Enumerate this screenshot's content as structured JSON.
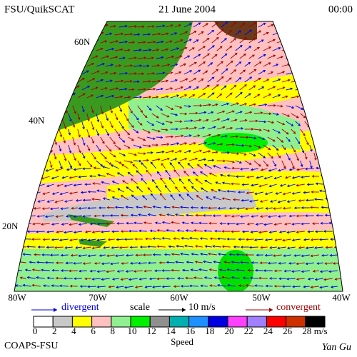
{
  "header": {
    "left": "FSU/QuikSCAT",
    "center": "21 June 2004",
    "right": "00:00"
  },
  "map": {
    "lat_labels": [
      "60N",
      "40N",
      "20N"
    ],
    "lon_labels": [
      "80W",
      "70W",
      "60W",
      "50W",
      "40W"
    ]
  },
  "legend": {
    "divergent": "divergent",
    "scale": "scale",
    "scale_value": "10 m/s",
    "convergent": "convergent"
  },
  "colorbar": {
    "label": "Speed",
    "unit": "m/s",
    "ticks": [
      0,
      2,
      4,
      6,
      8,
      10,
      12,
      14,
      16,
      18,
      20,
      22,
      24,
      26,
      28
    ],
    "colors": [
      "#ffffff",
      "#c8c8c8",
      "#ffff00",
      "#ffc0c0",
      "#90f090",
      "#00f000",
      "#909090",
      "#00b0b0",
      "#1e90ff",
      "#0000e0",
      "#ff40ff",
      "#a080ff",
      "#ff0000",
      "#d03000",
      "#000000"
    ]
  },
  "footer": {
    "left": "COAPS-FSU",
    "right": "Yan Gu"
  }
}
